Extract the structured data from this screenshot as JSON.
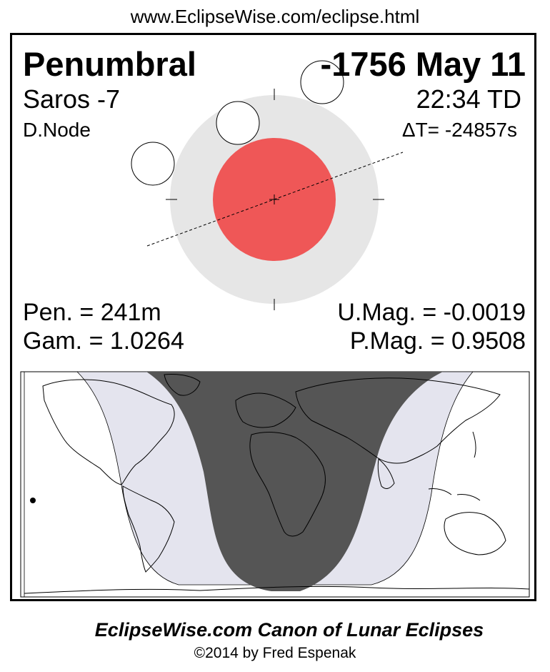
{
  "header": {
    "url": "www.EclipseWise.com/eclipse.html"
  },
  "eclipse": {
    "type": "Penumbral",
    "date": "-1756 May 11",
    "saros": "Saros  -7",
    "time": "22:34 TD",
    "node": "D.Node",
    "delta_t": "ΔT= -24857s",
    "pen_duration": "Pen. = 241m",
    "gamma": "Gam. = 1.0264",
    "umbral_mag": "U.Mag. = -0.0019",
    "penumbral_mag": "P.Mag. = 0.9508"
  },
  "colors": {
    "penumbra": "#e6e6e6",
    "umbra": "#ef5757",
    "night_region": "#555555",
    "penumbral_visibility": "#e4e4ee"
  },
  "footer": {
    "title": "EclipseWise.com Canon of Lunar Eclipses",
    "credit": "©2014 by Fred Espenak"
  }
}
